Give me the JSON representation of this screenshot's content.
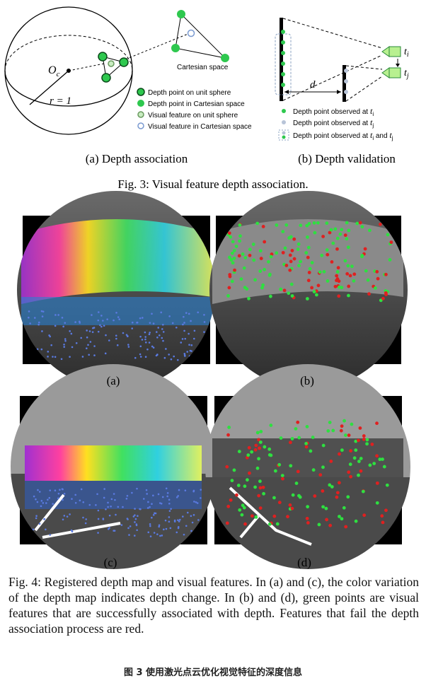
{
  "fig3": {
    "sub_a": {
      "origin": {
        "var": "O",
        "sub": "c"
      },
      "radius": "r = 1",
      "cartesian": "Cartesian space",
      "legend": [
        "Depth point on unit sphere",
        "Depth point in Cartesian space",
        "Visual feature on unit sphere",
        "Visual feature in Cartesian space"
      ],
      "caption": "(a) Depth association"
    },
    "sub_b": {
      "distance": "d",
      "cam_labels": [
        {
          "var": "t",
          "sub": "i"
        },
        {
          "var": "t",
          "sub": "j"
        }
      ],
      "legend": [
        {
          "pre": "Depth point observed at ",
          "var": "t",
          "sub": "i"
        },
        {
          "pre": "Depth point observed at ",
          "var": "t",
          "sub": "j"
        },
        {
          "pre": "Depth point observed at ",
          "var": "t",
          "sub": "i",
          "mid": " and ",
          "var2": "t",
          "sub2": "j"
        }
      ],
      "caption": "(b) Depth validation"
    },
    "caption": "Fig. 3: Visual feature depth association."
  },
  "fig4": {
    "panels": [
      "(a)",
      "(b)",
      "(c)",
      "(d)"
    ],
    "caption": "Fig. 4: Registered depth map and visual features. In (a) and (c), the color variation of the depth map indicates depth change. In (b) and (d), green points are visual features that are successfully associated with depth. Features that fail the depth association process are red."
  },
  "footer": "图 3 使用激光点云优化视觉特征的深度信息"
}
